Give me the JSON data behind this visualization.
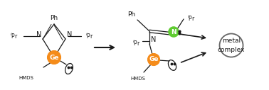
{
  "bg_color": "#ffffff",
  "orange_color": "#f58c1a",
  "green_color": "#5ecb30",
  "black_color": "#1a1a1a",
  "dark_gray": "#444444",
  "green_dark": "#2a8a00",
  "fig_width": 3.78,
  "fig_height": 1.27,
  "dpi": 100,
  "xlim": [
    0,
    3.78
  ],
  "ylim": [
    0,
    1.27
  ]
}
